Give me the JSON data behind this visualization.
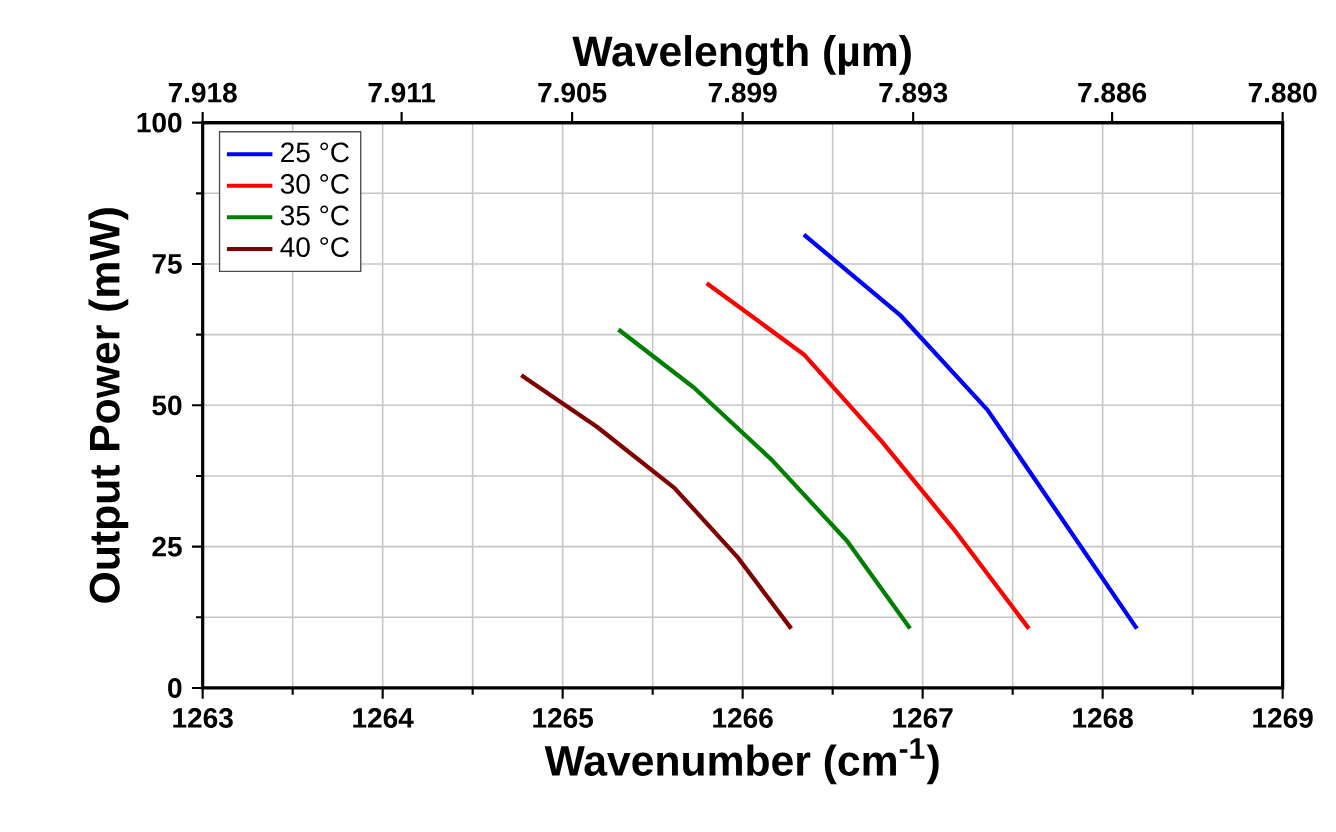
{
  "chart_data": {
    "type": "line",
    "xlabel": "Wavenumber (cm$^{-1}$)",
    "ylabel": "Output Power (mW)",
    "x2label": "Wavelength (µm)",
    "xlim": [
      1263,
      1269
    ],
    "xticks": [
      1263,
      1264,
      1265,
      1266,
      1267,
      1268,
      1269
    ],
    "x2lim": [
      7.918,
      7.88
    ],
    "x2ticks": [
      7.918,
      7.911,
      7.905,
      7.899,
      7.893,
      7.886,
      {
        "value": 7.88,
        "label": "7.880"
      }
    ],
    "ylim": [
      0,
      100
    ],
    "yticks": [
      0,
      25,
      50,
      75,
      100
    ],
    "grid": true,
    "legend": "top left",
    "line_style": "solid",
    "series": [
      {
        "name": "25 °C",
        "color": "#0000ff",
        "x": [
          1266.34,
          1266.88,
          1267.36,
          1268.19
        ],
        "values": [
          80.2,
          65.8,
          49.2,
          10.5
        ]
      },
      {
        "name": "30 °C",
        "color": "#ff0000",
        "x": [
          1265.8,
          1266.34,
          1266.77,
          1267.17,
          1267.59
        ],
        "values": [
          71.6,
          59.0,
          43.7,
          28.2,
          10.5
        ]
      },
      {
        "name": "35 °C",
        "color": "#008000",
        "x": [
          1265.31,
          1265.73,
          1266.16,
          1266.58,
          1266.93
        ],
        "values": [
          63.4,
          53.1,
          40.4,
          26.0,
          10.5
        ]
      },
      {
        "name": "40 °C",
        "color": "#800000",
        "x": [
          1264.77,
          1265.19,
          1265.62,
          1265.97,
          1266.27
        ],
        "values": [
          55.3,
          46.2,
          35.4,
          23.2,
          10.5
        ]
      }
    ]
  }
}
